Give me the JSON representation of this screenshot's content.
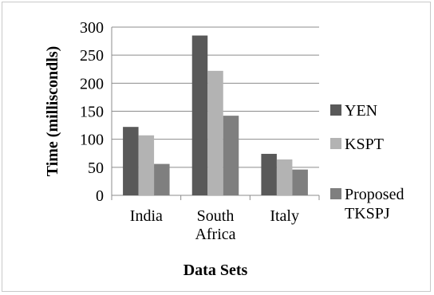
{
  "chart_data": {
    "type": "bar",
    "title": "",
    "xlabel": "Data Sets",
    "ylabel": "Time (milliscondls)",
    "ylim": [
      0,
      300
    ],
    "yticks": [
      0,
      50,
      100,
      150,
      200,
      250,
      300
    ],
    "grid": true,
    "legend_position": "right",
    "categories": [
      [
        "India"
      ],
      [
        "South",
        "Africa"
      ],
      [
        "Italy"
      ]
    ],
    "series": [
      {
        "name": "YEN",
        "color": "#595959",
        "values": [
          122,
          285,
          74
        ]
      },
      {
        "name": "KSPT",
        "color": "#b3b3b3",
        "values": [
          107,
          222,
          64
        ]
      },
      {
        "name": "Proposed TKSPJ",
        "name_lines": [
          "Proposed",
          "TKSPJ"
        ],
        "color": "#7f7f7f",
        "values": [
          56,
          142,
          46
        ]
      }
    ]
  }
}
